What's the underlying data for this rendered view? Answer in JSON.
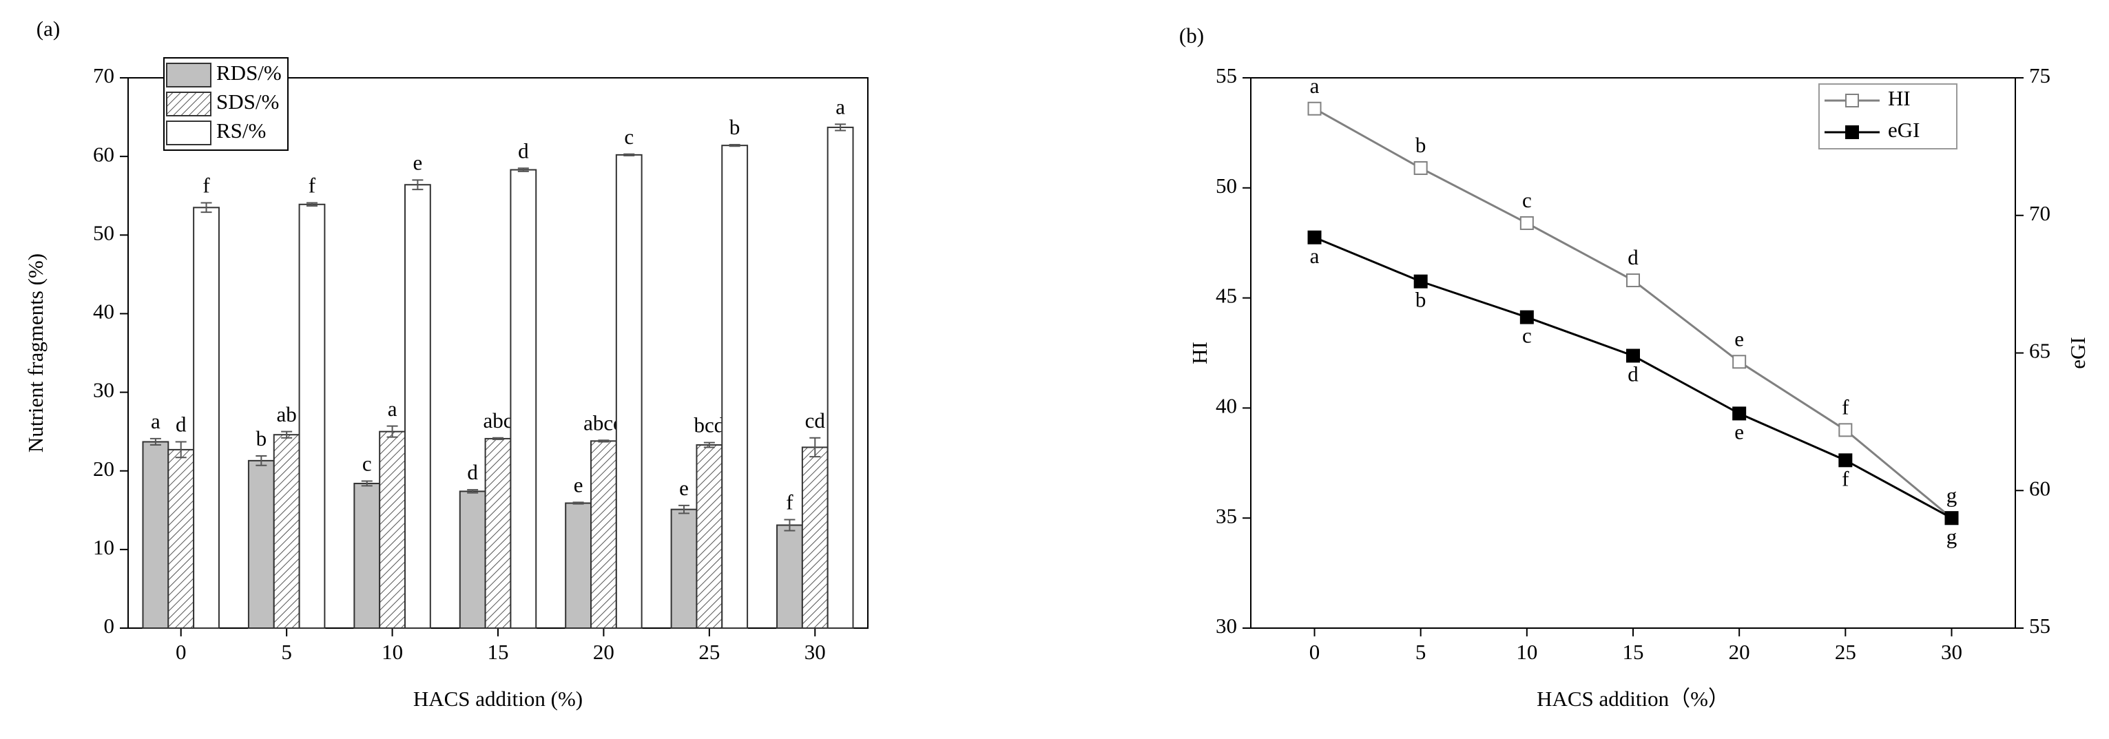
{
  "chart_data": [
    {
      "type": "bar",
      "panel": "(a)",
      "ylabel": "Nutrient fragments (%)",
      "xlabel": "HACS addition (%)",
      "categories": [
        "0",
        "5",
        "10",
        "15",
        "20",
        "25",
        "30"
      ],
      "series": [
        {
          "name": "RDS/%",
          "color": "#c0c0c0",
          "hatch": false,
          "values": [
            23.7,
            21.3,
            18.4,
            17.4,
            15.9,
            15.1,
            13.1
          ],
          "errors": [
            0.4,
            0.6,
            0.3,
            0.2,
            0.1,
            0.5,
            0.7
          ],
          "letters": [
            "a",
            "b",
            "c",
            "d",
            "e",
            "e",
            "f"
          ]
        },
        {
          "name": "SDS/%",
          "color": "#ffffff",
          "hatch": true,
          "values": [
            22.7,
            24.6,
            25.0,
            24.1,
            23.8,
            23.3,
            23.0
          ],
          "errors": [
            1.0,
            0.4,
            0.7,
            0.1,
            0.1,
            0.3,
            1.2
          ],
          "letters": [
            "d",
            "ab",
            "a",
            "abc",
            "abcd",
            "bcd",
            "cd"
          ]
        },
        {
          "name": "RS/%",
          "color": "#ffffff",
          "hatch": false,
          "values": [
            53.5,
            53.9,
            56.4,
            58.3,
            60.2,
            61.4,
            63.7
          ],
          "errors": [
            0.6,
            0.2,
            0.6,
            0.2,
            0.1,
            0.1,
            0.4
          ],
          "letters": [
            "f",
            "f",
            "e",
            "d",
            "c",
            "b",
            "a"
          ]
        }
      ],
      "ylim": [
        0,
        70
      ],
      "yticks": [
        0,
        10,
        20,
        30,
        40,
        50,
        60,
        70
      ],
      "legend": "upper left"
    },
    {
      "type": "line",
      "panel": "(b)",
      "ylabel": "HI",
      "y2label": "eGI",
      "xlabel": "HACS addition（%）",
      "x": [
        0,
        5,
        10,
        15,
        20,
        25,
        30
      ],
      "xlim": [
        -3,
        33
      ],
      "xticks": [
        0,
        5,
        10,
        15,
        20,
        25,
        30
      ],
      "series": [
        {
          "name": "HI",
          "color": "#808080",
          "marker": "open-square",
          "values": [
            53.6,
            50.9,
            48.4,
            45.8,
            42.1,
            39.0,
            35.0
          ],
          "letters": [
            "a",
            "b",
            "c",
            "d",
            "e",
            "f",
            "g"
          ]
        },
        {
          "name": "eGI",
          "color": "#000000",
          "marker": "filled-square",
          "axis": "y2",
          "values": [
            69.2,
            67.6,
            66.3,
            64.9,
            62.8,
            61.1,
            59.0
          ],
          "letters": [
            "a",
            "b",
            "c",
            "d",
            "e",
            "f",
            "g"
          ]
        }
      ],
      "ylim": [
        30,
        55
      ],
      "yticks": [
        30,
        35,
        40,
        45,
        50,
        55
      ],
      "y2lim": [
        55,
        75
      ],
      "y2ticks": [
        55,
        60,
        65,
        70,
        75
      ],
      "legend": "upper right"
    }
  ]
}
